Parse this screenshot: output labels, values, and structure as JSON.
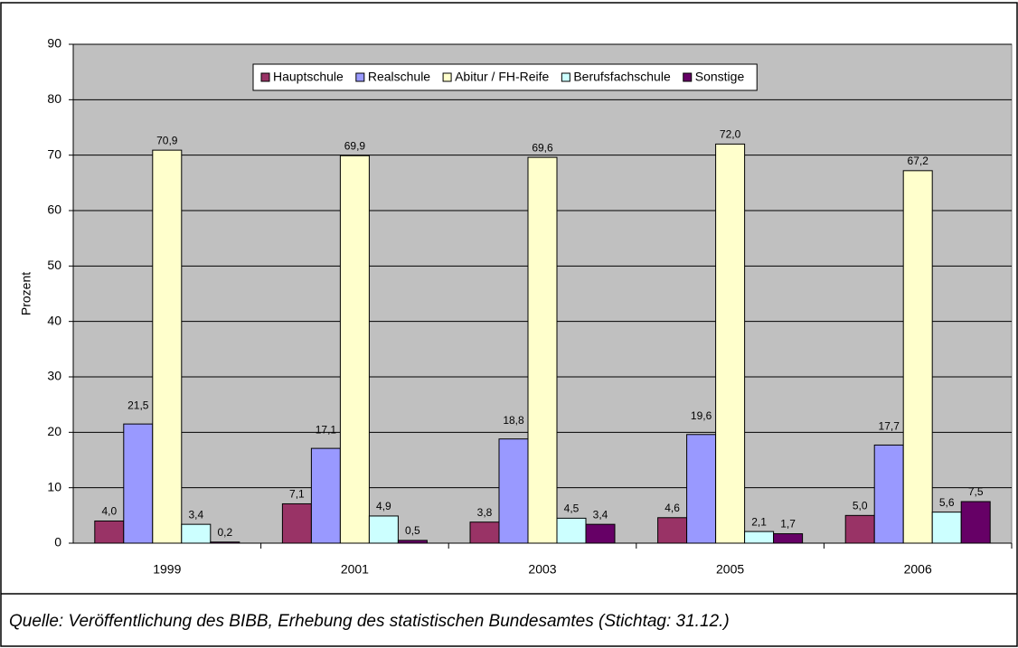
{
  "chart_data": {
    "type": "bar",
    "y_label": "Prozent",
    "caption": "Quelle: Veröffentlichung des BIBB, Erhebung des statistischen Bundesamtes (Stichtag: 31.12.)",
    "categories": [
      "1999",
      "2001",
      "2003",
      "2005",
      "2006"
    ],
    "series": [
      {
        "name": "Hauptschule",
        "color": "#993366",
        "values": [
          4.0,
          7.1,
          3.8,
          4.6,
          5.0
        ],
        "value_labels": [
          "4,0",
          "7,1",
          "3,8",
          "4,6",
          "5,0"
        ]
      },
      {
        "name": "Realschule",
        "color": "#9999ff",
        "values": [
          21.5,
          17.1,
          18.8,
          19.6,
          17.7
        ],
        "value_labels": [
          "21,5",
          "17,1",
          "18,8",
          "19,6",
          "17,7"
        ]
      },
      {
        "name": "Abitur / FH-Reife",
        "color": "#ffffcc",
        "values": [
          70.9,
          69.9,
          69.6,
          72.0,
          67.2
        ],
        "value_labels": [
          "70,9",
          "69,9",
          "69,6",
          "72,0",
          "67,2"
        ]
      },
      {
        "name": "Berufsfachschule",
        "color": "#ccffff",
        "values": [
          3.4,
          4.9,
          4.5,
          2.1,
          5.6
        ],
        "value_labels": [
          "3,4",
          "4,9",
          "4,5",
          "2,1",
          "5,6"
        ]
      },
      {
        "name": "Sonstige",
        "color": "#660066",
        "values": [
          0.2,
          0.5,
          3.4,
          1.7,
          7.5
        ],
        "value_labels": [
          "0,2",
          "0,5",
          "3,4",
          "1,7",
          "7,5"
        ]
      }
    ],
    "ylim": [
      0,
      90
    ],
    "yticks": [
      0,
      10,
      20,
      30,
      40,
      50,
      60,
      70,
      80,
      90
    ],
    "grid": true,
    "legend": "top",
    "plot_background": "#c0c0c0"
  }
}
